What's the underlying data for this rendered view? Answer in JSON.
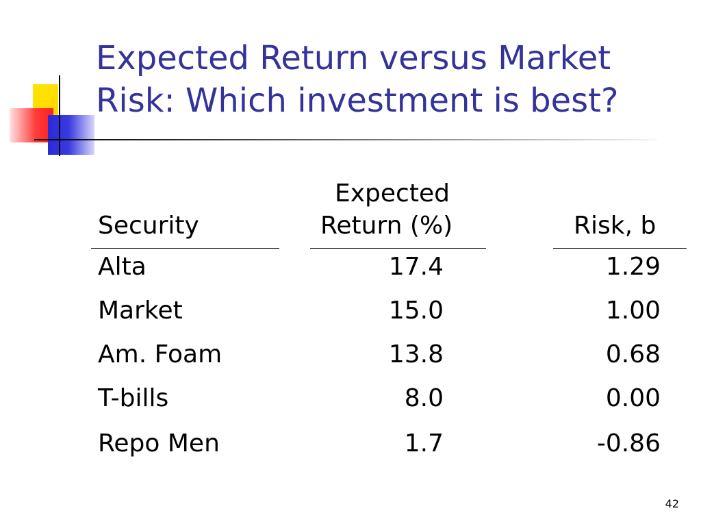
{
  "slide": {
    "title_line1": "Expected Return versus Market",
    "title_line2": "Risk: Which investment is best?",
    "page_number": "42",
    "title_color": "#333399"
  },
  "table": {
    "headers": {
      "security": "Security",
      "return_line1": "Expected",
      "return_line2": "Return (%)",
      "risk": "Risk, b"
    },
    "rows": [
      {
        "security": "Alta",
        "return": "17.4",
        "risk": "1.29"
      },
      {
        "security": "Market",
        "return": "15.0",
        "risk": "1.00"
      },
      {
        "security": "Am. Foam",
        "return": "13.8",
        "risk": "0.68"
      },
      {
        "security": "T-bills",
        "return": "8.0",
        "risk": "0.00"
      },
      {
        "security": "Repo Men",
        "return": "1.7",
        "risk": "-0.86"
      }
    ]
  }
}
